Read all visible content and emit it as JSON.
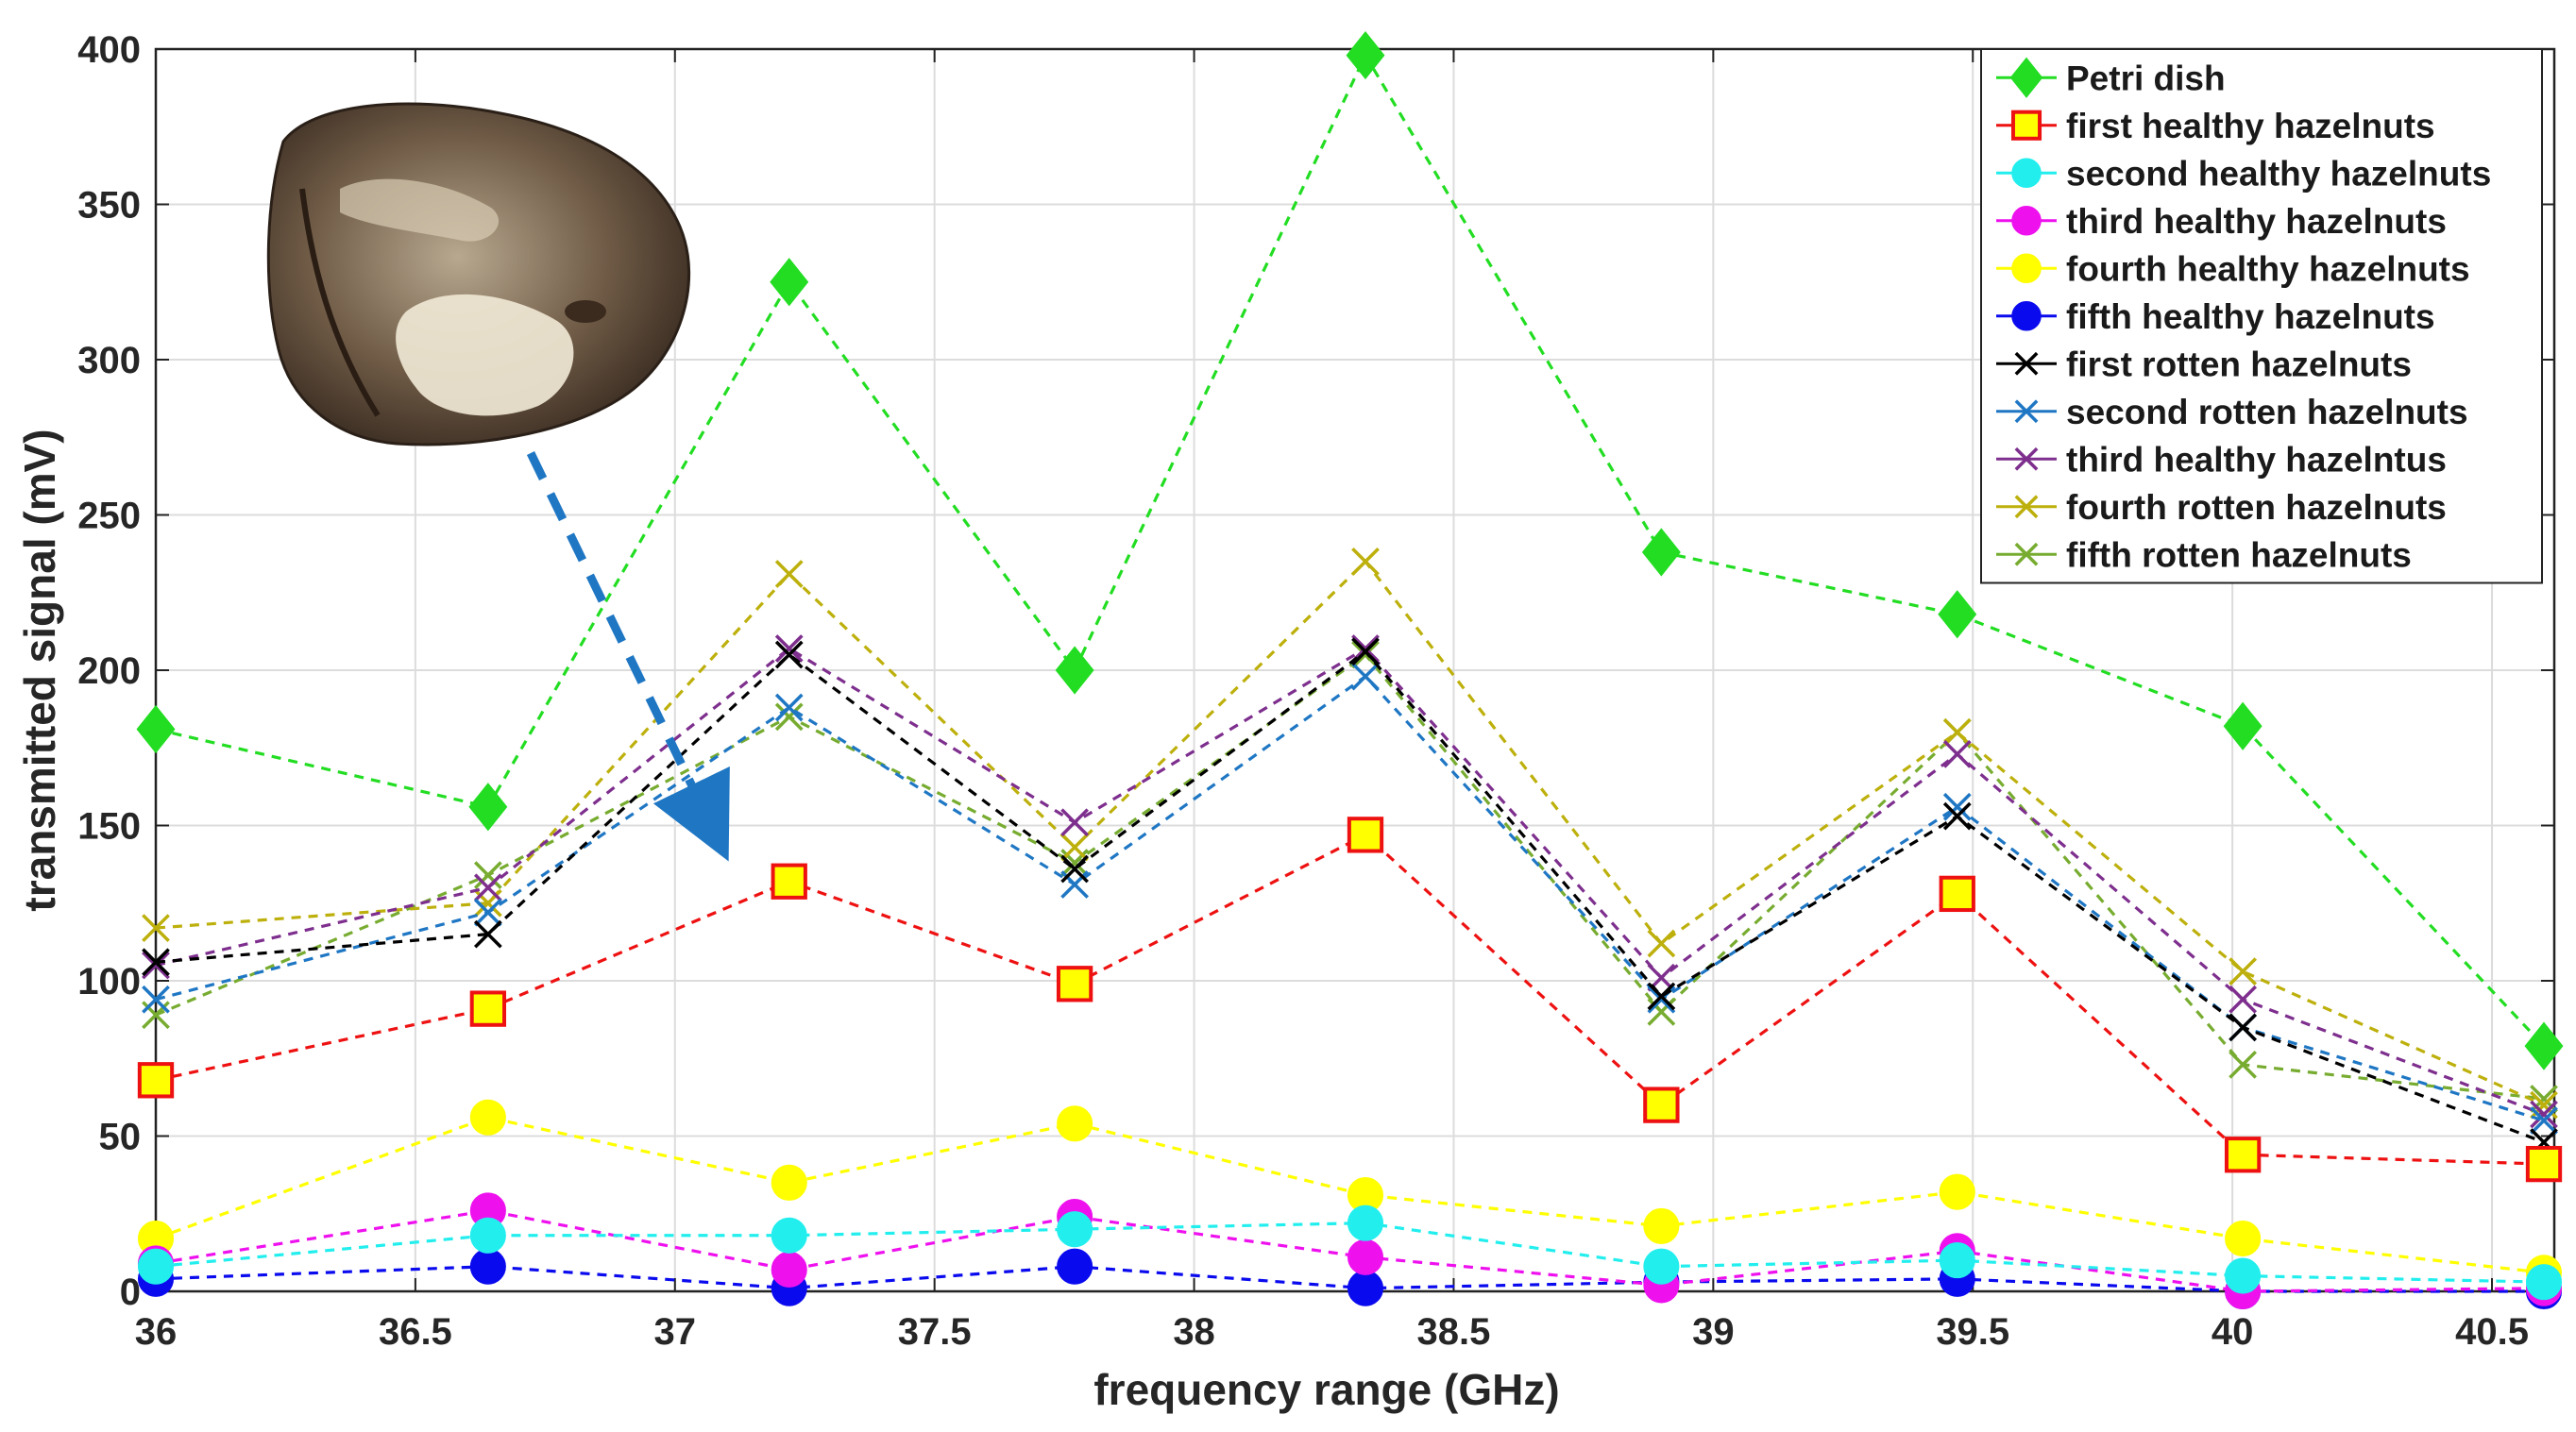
{
  "chart_data": {
    "type": "line",
    "xlabel": "frequency range (GHz)",
    "ylabel": "transmitted signal (mV)",
    "xlim": [
      36,
      40.62
    ],
    "ylim": [
      0,
      400
    ],
    "xticks": [
      36,
      36.5,
      37,
      37.5,
      38,
      38.5,
      39,
      39.5,
      40,
      40.5
    ],
    "yticks": [
      0,
      50,
      100,
      150,
      200,
      250,
      300,
      350,
      400
    ],
    "grid": true,
    "legend_position": "top-right",
    "x": [
      36.0,
      36.64,
      37.22,
      37.77,
      38.33,
      38.9,
      39.47,
      40.02,
      40.6
    ],
    "series": [
      {
        "name": "Petri dish",
        "color": "#22dd22",
        "marker": "diamond",
        "values": [
          181,
          156,
          325,
          200,
          398,
          238,
          218,
          182,
          79
        ]
      },
      {
        "name": "first healthy hazelnuts",
        "color": "#ee1111",
        "marker": "square",
        "values": [
          68,
          91,
          132,
          99,
          147,
          60,
          128,
          44,
          41
        ]
      },
      {
        "name": "second healthy hazelnuts",
        "color": "#22eeee",
        "marker": "circle",
        "values": [
          8,
          18,
          18,
          20,
          22,
          8,
          10,
          5,
          3
        ]
      },
      {
        "name": "third healthy hazelnuts",
        "color": "#ee11ee",
        "marker": "circle",
        "values": [
          9,
          26,
          7,
          24,
          11,
          2,
          13,
          0,
          1
        ]
      },
      {
        "name": "fourth healthy hazelnuts",
        "color": "#ffff00",
        "marker": "circle",
        "values": [
          17,
          56,
          35,
          54,
          31,
          21,
          32,
          17,
          6
        ]
      },
      {
        "name": "fifth healthy hazelnuts",
        "color": "#0a0aee",
        "marker": "circle",
        "values": [
          4,
          8,
          1,
          8,
          1,
          3,
          4,
          0,
          0
        ]
      },
      {
        "name": "first rotten hazelnuts",
        "color": "#000000",
        "marker": "x",
        "values": [
          106,
          115,
          205,
          136,
          206,
          95,
          153,
          85,
          48
        ]
      },
      {
        "name": "second rotten hazelnuts",
        "color": "#1f77c4",
        "marker": "x",
        "values": [
          94,
          122,
          188,
          131,
          198,
          94,
          156,
          85,
          55
        ]
      },
      {
        "name": "third healthy hazelntus",
        "color": "#7e2f8e",
        "marker": "x",
        "values": [
          105,
          130,
          207,
          151,
          207,
          101,
          173,
          94,
          57
        ]
      },
      {
        "name": "fourth rotten hazelnuts",
        "color": "#bdb00c",
        "marker": "x",
        "values": [
          117,
          125,
          231,
          143,
          235,
          112,
          180,
          103,
          60
        ]
      },
      {
        "name": "fifth rotten hazelnuts",
        "color": "#77ac30",
        "marker": "x",
        "values": [
          89,
          134,
          185,
          138,
          205,
          90,
          180,
          73,
          62
        ]
      }
    ],
    "annotation": {
      "type": "photo-inset",
      "depicts": "rotten hazelnut",
      "arrow_color": "#1f77c4"
    }
  }
}
